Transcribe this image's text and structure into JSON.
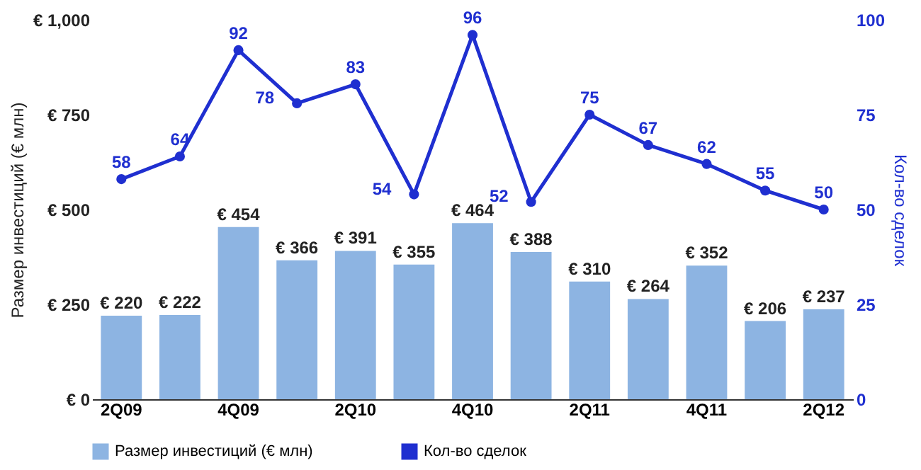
{
  "chart_data": {
    "type": "bar",
    "ylabel": "Размер инвестиций (€ млн)",
    "y2label": "Кол-во сделок",
    "categories": [
      "2Q09",
      null,
      "4Q09",
      null,
      "2Q10",
      null,
      "4Q10",
      null,
      "2Q11",
      null,
      "4Q11",
      null,
      "2Q12"
    ],
    "series": [
      {
        "name": "Размер инвестиций (€ млн)",
        "color": "#8db4e2",
        "values": [
          220,
          222,
          454,
          366,
          391,
          355,
          464,
          388,
          310,
          264,
          352,
          206,
          237
        ],
        "value_labels": [
          "€ 220",
          "€ 222",
          "€ 454",
          "€ 366",
          "€ 391",
          "€ 355",
          "€ 464",
          "€ 388",
          "€ 310",
          "€ 264",
          "€ 352",
          "€ 206",
          "€ 237"
        ]
      },
      {
        "name": "Кол-во сделок",
        "type": "line",
        "axis": "y2",
        "color": "#1f2fd0",
        "values": [
          58,
          64,
          92,
          78,
          83,
          54,
          96,
          52,
          75,
          67,
          62,
          55,
          50
        ],
        "value_labels": [
          "58",
          "64",
          "92",
          "78",
          "83",
          "54",
          "96",
          "52",
          "75",
          "67",
          "62",
          "55",
          "50"
        ]
      }
    ],
    "ylim": [
      0,
      1000
    ],
    "yticks": [
      {
        "value": 0,
        "label": "€ 0"
      },
      {
        "value": 250,
        "label": "€ 250"
      },
      {
        "value": 500,
        "label": "€ 500"
      },
      {
        "value": 750,
        "label": "€ 750"
      },
      {
        "value": 1000,
        "label": "€ 1,000"
      }
    ],
    "y2lim": [
      0,
      100
    ],
    "y2ticks": [
      0,
      25,
      50,
      75,
      100
    ],
    "legend": "bottom",
    "marker": "circle",
    "line_style": "solid"
  }
}
